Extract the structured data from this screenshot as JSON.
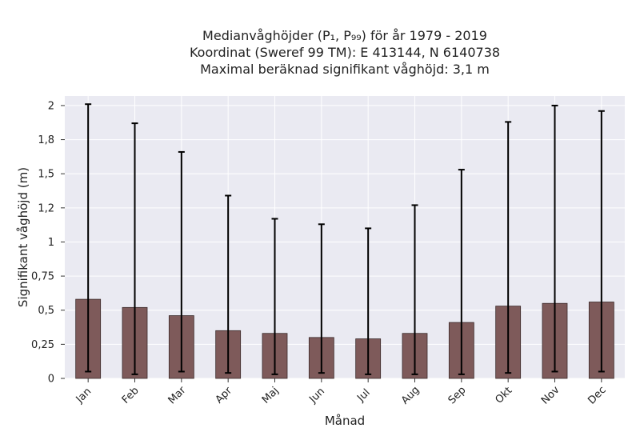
{
  "chart_data": {
    "type": "bar",
    "title_lines": [
      "Medianvåghöjder (P₁, P₉₉) för år 1979 - 2019",
      "Koordinat (Sweref 99 TM): E 413144, N 6140738",
      "Maximal beräknad signifikant våghöjd: 3,1 m"
    ],
    "xlabel": "Månad",
    "ylabel": "Signifikant våghöjd (m)",
    "categories": [
      "Jan",
      "Feb",
      "Mar",
      "Apr",
      "Maj",
      "Jun",
      "Jul",
      "Aug",
      "Sep",
      "Okt",
      "Nov",
      "Dec"
    ],
    "values": [
      0.58,
      0.52,
      0.46,
      0.35,
      0.33,
      0.3,
      0.29,
      0.33,
      0.41,
      0.53,
      0.55,
      0.56
    ],
    "err_low": [
      0.05,
      0.03,
      0.05,
      0.04,
      0.03,
      0.04,
      0.03,
      0.03,
      0.03,
      0.04,
      0.05,
      0.05
    ],
    "err_high": [
      2.01,
      1.87,
      1.66,
      1.34,
      1.17,
      1.13,
      1.1,
      1.27,
      1.53,
      1.88,
      2.0,
      1.96
    ],
    "yticks": [
      0,
      0.25,
      0.5,
      0.75,
      1,
      1.25,
      1.5,
      1.75,
      2
    ],
    "ytick_labels": [
      "0",
      "0,25",
      "0,5",
      "0,75",
      "1",
      "1,2",
      "1,5",
      "1,8",
      "2"
    ],
    "ylim": [
      0,
      2.07
    ],
    "grid": true,
    "colors": {
      "bar": "#7e5a5a",
      "bar_edge": "#3a2a2a",
      "background": "#eaeaf2",
      "grid": "#ffffff",
      "error": "#000000"
    }
  }
}
